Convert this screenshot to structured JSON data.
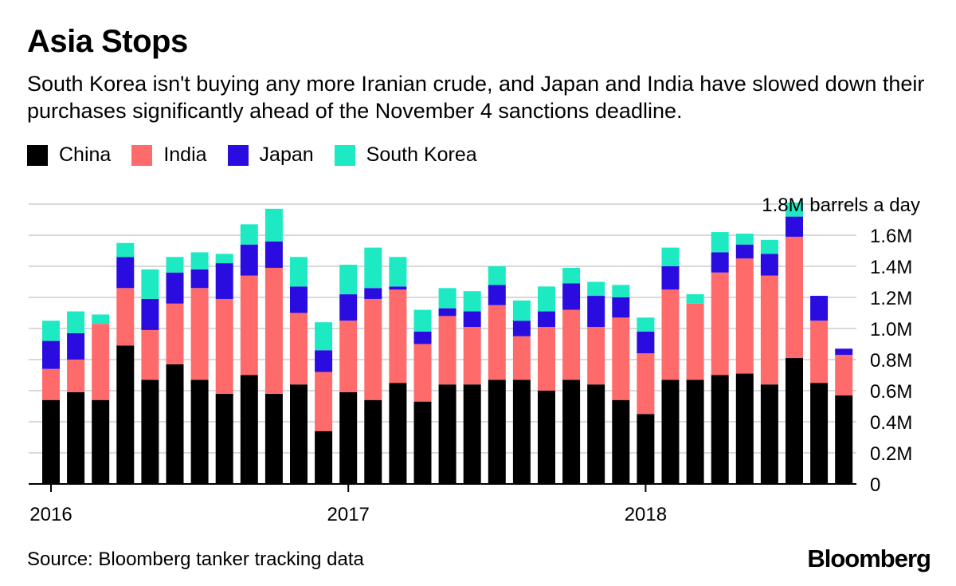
{
  "header": {
    "title": "Asia Stops",
    "subtitle": "South Korea isn't buying any more Iranian crude, and Japan and India have slowed down their purchases significantly ahead of the November 4 sanctions deadline."
  },
  "legend": [
    {
      "name": "China",
      "color": "#000000"
    },
    {
      "name": "India",
      "color": "#ff6b6b"
    },
    {
      "name": "Japan",
      "color": "#2a0ce0"
    },
    {
      "name": "South Korea",
      "color": "#1de9c2"
    }
  ],
  "footer": {
    "source": "Source: Bloomberg tanker tracking data",
    "brand": "Bloomberg"
  },
  "chart_data": {
    "type": "bar",
    "stacked": true,
    "title": "Asia Stops",
    "unit_label": "1.8M barrels a day",
    "ylim": [
      0,
      1.8
    ],
    "y_ticks": [
      {
        "value": 0,
        "label": "0"
      },
      {
        "value": 0.2,
        "label": "0.2M"
      },
      {
        "value": 0.4,
        "label": "0.4M"
      },
      {
        "value": 0.6,
        "label": "0.6M"
      },
      {
        "value": 0.8,
        "label": "0.8M"
      },
      {
        "value": 1.0,
        "label": "1.0M"
      },
      {
        "value": 1.2,
        "label": "1.2M"
      },
      {
        "value": 1.4,
        "label": "1.4M"
      },
      {
        "value": 1.6,
        "label": "1.6M"
      }
    ],
    "x_ticks": [
      {
        "index": 0,
        "label": "2016"
      },
      {
        "index": 12,
        "label": "2017"
      },
      {
        "index": 24,
        "label": "2018"
      }
    ],
    "categories": [
      "Jan 2016",
      "Feb 2016",
      "Mar 2016",
      "Apr 2016",
      "May 2016",
      "Jun 2016",
      "Jul 2016",
      "Aug 2016",
      "Sep 2016",
      "Oct 2016",
      "Nov 2016",
      "Dec 2016",
      "Jan 2017",
      "Feb 2017",
      "Mar 2017",
      "Apr 2017",
      "May 2017",
      "Jun 2017",
      "Jul 2017",
      "Aug 2017",
      "Sep 2017",
      "Oct 2017",
      "Nov 2017",
      "Dec 2017",
      "Jan 2018",
      "Feb 2018",
      "Mar 2018",
      "Apr 2018",
      "May 2018",
      "Jun 2018",
      "Jul 2018",
      "Aug 2018",
      "Sep 2018",
      "Oct 2018"
    ],
    "series": [
      {
        "name": "China",
        "color": "#000000",
        "values": [
          0.54,
          0.59,
          0.54,
          0.89,
          0.67,
          0.77,
          0.67,
          0.58,
          0.7,
          0.58,
          0.64,
          0.34,
          0.59,
          0.54,
          0.65,
          0.53,
          0.64,
          0.64,
          0.67,
          0.67,
          0.6,
          0.67,
          0.64,
          0.54,
          0.45,
          0.67,
          0.67,
          0.7,
          0.71,
          0.64,
          0.81,
          0.65,
          0.57,
          0.0
        ]
      },
      {
        "name": "India",
        "color": "#ff6b6b",
        "values": [
          0.2,
          0.21,
          0.49,
          0.37,
          0.32,
          0.39,
          0.59,
          0.61,
          0.64,
          0.81,
          0.46,
          0.38,
          0.46,
          0.65,
          0.6,
          0.37,
          0.44,
          0.37,
          0.48,
          0.28,
          0.41,
          0.45,
          0.37,
          0.53,
          0.39,
          0.58,
          0.49,
          0.66,
          0.74,
          0.7,
          0.78,
          0.4,
          0.26,
          0.0
        ]
      },
      {
        "name": "Japan",
        "color": "#2a0ce0",
        "values": [
          0.18,
          0.17,
          0.0,
          0.2,
          0.2,
          0.2,
          0.12,
          0.23,
          0.2,
          0.17,
          0.17,
          0.14,
          0.17,
          0.07,
          0.02,
          0.08,
          0.05,
          0.1,
          0.13,
          0.1,
          0.1,
          0.17,
          0.2,
          0.13,
          0.14,
          0.15,
          0.0,
          0.13,
          0.09,
          0.14,
          0.13,
          0.16,
          0.04,
          0.0
        ]
      },
      {
        "name": "South Korea",
        "color": "#1de9c2",
        "values": [
          0.13,
          0.14,
          0.06,
          0.09,
          0.19,
          0.1,
          0.11,
          0.06,
          0.13,
          0.21,
          0.19,
          0.18,
          0.19,
          0.26,
          0.19,
          0.14,
          0.13,
          0.13,
          0.12,
          0.13,
          0.16,
          0.1,
          0.09,
          0.08,
          0.09,
          0.12,
          0.06,
          0.13,
          0.07,
          0.09,
          0.09,
          0.0,
          0.0,
          0.0
        ]
      }
    ]
  }
}
